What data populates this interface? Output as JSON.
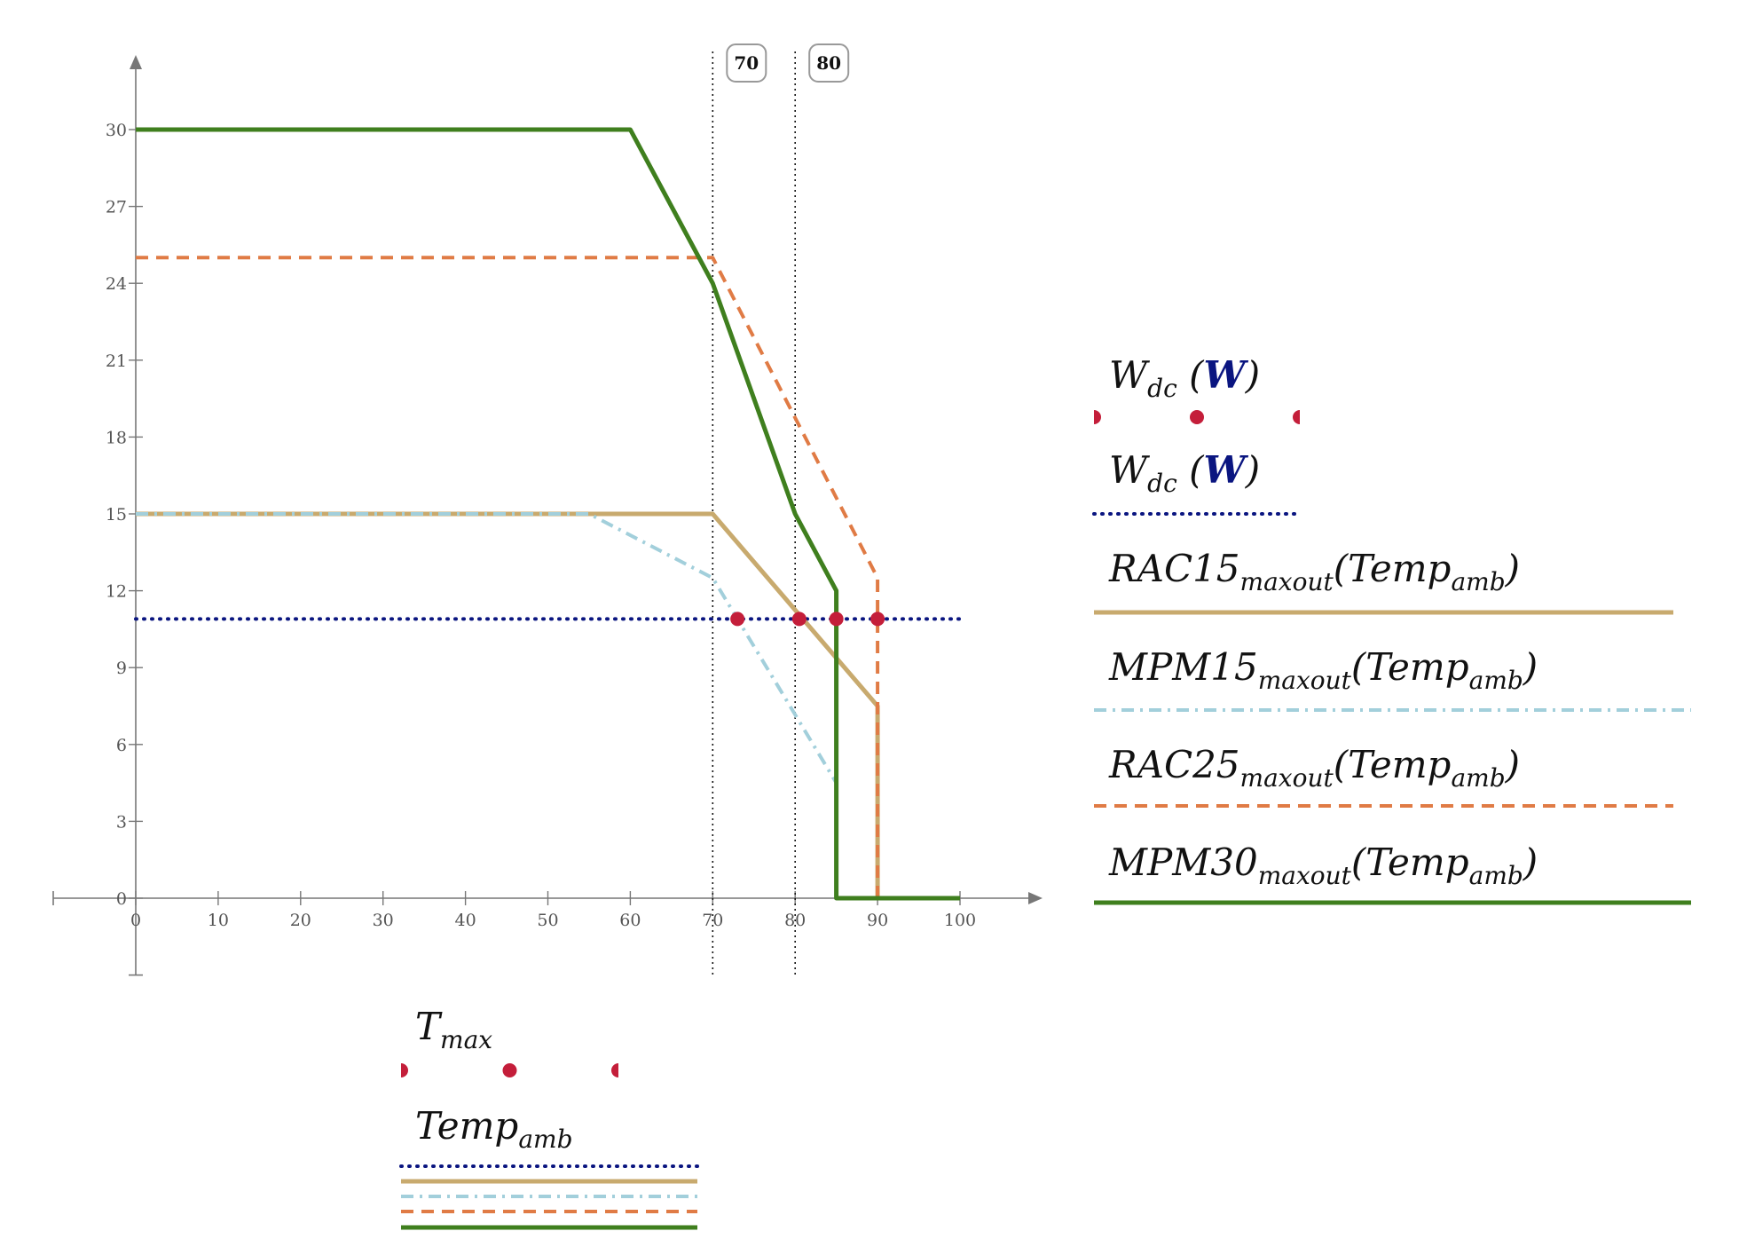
{
  "chart_data": {
    "type": "line",
    "x_axis": {
      "range": [
        0,
        100
      ],
      "ticks": [
        0,
        10,
        20,
        30,
        40,
        50,
        60,
        70,
        80,
        90,
        100
      ],
      "tick_labels": [
        "0",
        "10",
        "20",
        "30",
        "40",
        "50",
        "60",
        "70",
        "80",
        "90",
        "100"
      ]
    },
    "y_axis": {
      "range": [
        -3,
        33
      ],
      "ticks": [
        0,
        3,
        6,
        9,
        12,
        15,
        18,
        21,
        24,
        27,
        30
      ],
      "tick_labels": [
        "0",
        "3",
        "6",
        "9",
        "12",
        "15",
        "18",
        "21",
        "24",
        "27",
        "30"
      ]
    },
    "grid": false,
    "vertical_markers": [
      {
        "x": 70,
        "label": "70"
      },
      {
        "x": 80,
        "label": "80"
      }
    ],
    "series": [
      {
        "id": "wdc_line",
        "color": "#0a1580",
        "style": "dotted",
        "points": [
          [
            0,
            10.9
          ],
          [
            100,
            10.9
          ]
        ]
      },
      {
        "id": "rac15",
        "color": "#c8aa6e",
        "style": "solid",
        "points": [
          [
            0,
            15
          ],
          [
            70,
            15
          ],
          [
            90,
            7.5
          ],
          [
            90,
            0
          ],
          [
            100,
            0
          ]
        ]
      },
      {
        "id": "mpm15",
        "color": "#a2cfdb",
        "style": "dashdot",
        "points": [
          [
            0,
            15
          ],
          [
            55,
            15
          ],
          [
            70,
            12.5
          ],
          [
            85,
            4.5
          ]
        ]
      },
      {
        "id": "rac25",
        "color": "#e07b45",
        "style": "dashed",
        "points": [
          [
            0,
            25
          ],
          [
            70,
            25
          ],
          [
            90,
            12.5
          ],
          [
            90,
            0
          ],
          [
            100,
            0
          ]
        ]
      },
      {
        "id": "mpm30",
        "color": "#3f7f1e",
        "style": "solid",
        "points": [
          [
            0,
            30
          ],
          [
            60,
            30
          ],
          [
            70,
            24
          ],
          [
            80,
            15
          ],
          [
            85,
            12
          ],
          [
            85,
            0
          ],
          [
            100,
            0
          ]
        ]
      }
    ],
    "points": {
      "id": "tmax_points",
      "color": "#c41e3a",
      "values": [
        [
          73,
          10.9
        ],
        [
          80.5,
          10.9
        ],
        [
          85,
          10.9
        ],
        [
          90,
          10.9
        ]
      ]
    },
    "legend_right": [
      {
        "main": "W",
        "sub": "dc",
        "unit": "W",
        "swatch": "points",
        "color": "#c41e3a"
      },
      {
        "main": "W",
        "sub": "dc",
        "unit": "W",
        "swatch": "dotted",
        "color": "#0a1580"
      },
      {
        "main": "RAC15",
        "sub": "maxout",
        "arg_main": "Temp",
        "arg_sub": "amb",
        "swatch": "solid",
        "color": "#c8aa6e"
      },
      {
        "main": "MPM15",
        "sub": "maxout",
        "arg_main": "Temp",
        "arg_sub": "amb",
        "swatch": "dashdot",
        "color": "#a2cfdb"
      },
      {
        "main": "RAC25",
        "sub": "maxout",
        "arg_main": "Temp",
        "arg_sub": "amb",
        "swatch": "dashed",
        "color": "#e07b45"
      },
      {
        "main": "MPM30",
        "sub": "maxout",
        "arg_main": "Temp",
        "arg_sub": "amb",
        "swatch": "solid",
        "color": "#3f7f1e"
      }
    ],
    "legend_bottom": [
      {
        "main": "T",
        "sub": "max",
        "swatch": "points",
        "color": "#c41e3a"
      },
      {
        "main": "Temp",
        "sub": "amb",
        "swatches": [
          {
            "style": "dotted",
            "color": "#0a1580"
          },
          {
            "style": "solid",
            "color": "#c8aa6e"
          },
          {
            "style": "dashdot",
            "color": "#a2cfdb"
          },
          {
            "style": "dashed",
            "color": "#e07b45"
          },
          {
            "style": "solid",
            "color": "#3f7f1e"
          }
        ]
      }
    ],
    "unit_color": "#0a1580"
  }
}
